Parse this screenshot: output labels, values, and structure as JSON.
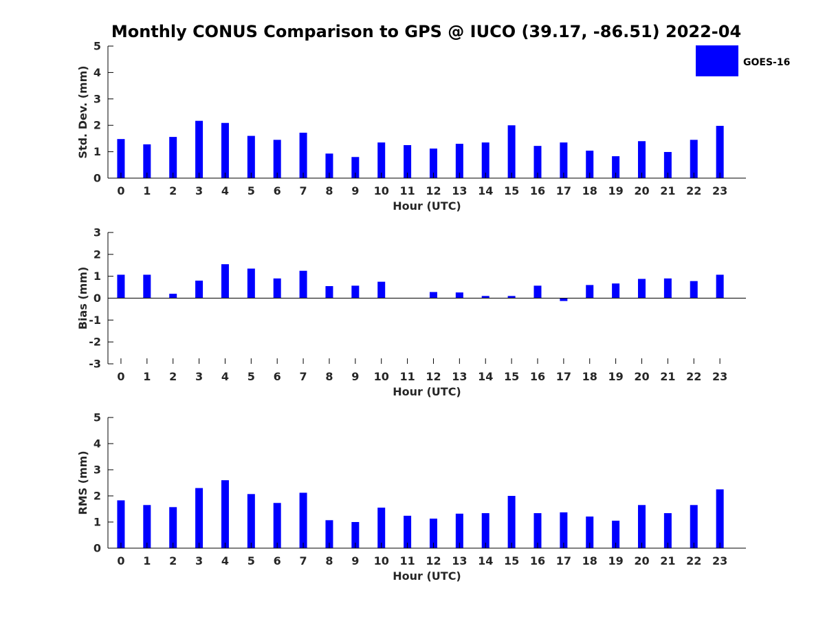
{
  "title": "Monthly CONUS Comparison to GPS @ IUCO (39.17, -86.51) 2022-04",
  "legend": {
    "label": "GOES-16",
    "color": "#0000ff",
    "placement": "top-right"
  },
  "chart_data": [
    {
      "type": "bar",
      "categories": [
        "0",
        "1",
        "2",
        "3",
        "4",
        "5",
        "6",
        "7",
        "8",
        "9",
        "10",
        "11",
        "12",
        "13",
        "14",
        "15",
        "16",
        "17",
        "18",
        "19",
        "20",
        "21",
        "22",
        "23"
      ],
      "series": [
        {
          "name": "GOES-16",
          "values": [
            1.48,
            1.28,
            1.56,
            2.17,
            2.09,
            1.6,
            1.45,
            1.72,
            0.93,
            0.8,
            1.35,
            1.25,
            1.12,
            1.3,
            1.35,
            2.0,
            1.22,
            1.35,
            1.04,
            0.83,
            1.4,
            0.99,
            1.45,
            1.98
          ]
        }
      ],
      "xlabel": "Hour (UTC)",
      "ylabel": "Std. Dev. (mm)",
      "ylim": [
        0,
        5
      ],
      "yticks": [
        "0",
        "1",
        "2",
        "3",
        "4",
        "5"
      ],
      "grid": false
    },
    {
      "type": "bar",
      "categories": [
        "0",
        "1",
        "2",
        "3",
        "4",
        "5",
        "6",
        "7",
        "8",
        "9",
        "10",
        "11",
        "12",
        "13",
        "14",
        "15",
        "16",
        "17",
        "18",
        "19",
        "20",
        "21",
        "22",
        "23"
      ],
      "series": [
        {
          "name": "GOES-16",
          "values": [
            1.07,
            1.07,
            0.2,
            0.8,
            1.55,
            1.35,
            0.9,
            1.25,
            0.55,
            0.57,
            0.75,
            0.0,
            0.28,
            0.26,
            0.1,
            0.1,
            0.57,
            -0.13,
            0.6,
            0.67,
            0.88,
            0.9,
            0.78,
            1.07
          ]
        }
      ],
      "xlabel": "Hour (UTC)",
      "ylabel": "Bias (mm)",
      "ylim": [
        -3,
        3
      ],
      "yticks": [
        "-3",
        "-2",
        "-1",
        "0",
        "1",
        "2",
        "3"
      ],
      "grid": false
    },
    {
      "type": "bar",
      "categories": [
        "0",
        "1",
        "2",
        "3",
        "4",
        "5",
        "6",
        "7",
        "8",
        "9",
        "10",
        "11",
        "12",
        "13",
        "14",
        "15",
        "16",
        "17",
        "18",
        "19",
        "20",
        "21",
        "22",
        "23"
      ],
      "series": [
        {
          "name": "GOES-16",
          "values": [
            1.83,
            1.65,
            1.57,
            2.3,
            2.6,
            2.07,
            1.73,
            2.12,
            1.07,
            1.0,
            1.55,
            1.24,
            1.13,
            1.32,
            1.34,
            2.0,
            1.34,
            1.37,
            1.21,
            1.05,
            1.65,
            1.34,
            1.65,
            2.25
          ]
        }
      ],
      "xlabel": "Hour (UTC)",
      "ylabel": "RMS (mm)",
      "ylim": [
        0,
        5
      ],
      "yticks": [
        "0",
        "1",
        "2",
        "3",
        "4",
        "5"
      ],
      "grid": false
    }
  ]
}
